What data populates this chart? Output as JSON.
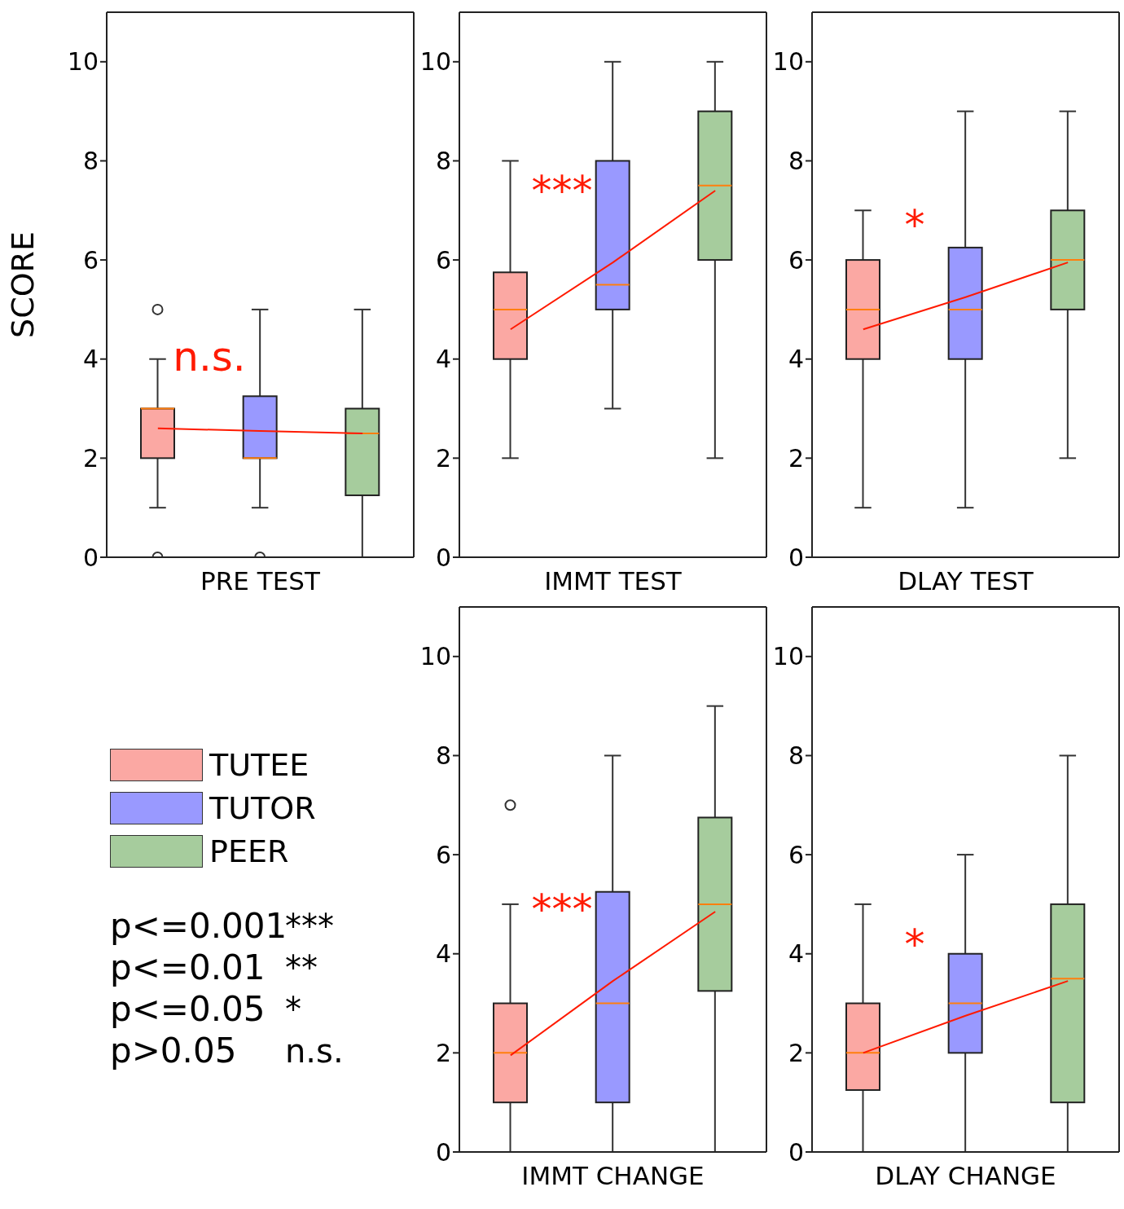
{
  "chart_data": [
    {
      "type": "box",
      "xlabel": "PRE TEST",
      "ylabel": "SCORE",
      "categories": [
        null,
        null,
        null
      ],
      "ylim": [
        0,
        11
      ],
      "yticks": [
        0,
        2,
        4,
        6,
        8,
        10
      ],
      "tick_labels": "y",
      "annotations": [
        "n.s."
      ],
      "series": [
        {
          "type": "box",
          "colors": [
            "#fba8a3",
            "#9999ff",
            "#a6cc9d"
          ],
          "boxes": [
            {
              "low": 1,
              "q1": 2,
              "median": 3,
              "q3": 3,
              "high": 4,
              "outliers": [
                5,
                0
              ]
            },
            {
              "low": 1,
              "q1": 2,
              "median": 2,
              "q3": 3.25,
              "high": 5,
              "outliers": [
                0
              ]
            },
            {
              "low": 0,
              "q1": 1.25,
              "median": 2.5,
              "q3": 3,
              "high": 5
            }
          ]
        },
        {
          "type": "line",
          "color": "#ff1a00",
          "values": [
            2.6,
            2.55,
            2.5
          ]
        }
      ]
    },
    {
      "type": "box",
      "xlabel": "IMMT TEST",
      "categories": [
        null,
        null,
        null
      ],
      "ylim": [
        0,
        11
      ],
      "yticks": [
        0,
        2,
        4,
        6,
        8,
        10
      ],
      "tick_labels": "y",
      "annotations": [
        "***"
      ],
      "series": [
        {
          "type": "box",
          "colors": [
            "#fba8a3",
            "#9999ff",
            "#a6cc9d"
          ],
          "boxes": [
            {
              "low": 2,
              "q1": 4,
              "median": 5,
              "q3": 5.75,
              "high": 8
            },
            {
              "low": 3,
              "q1": 5,
              "median": 5.5,
              "q3": 8,
              "high": 10
            },
            {
              "low": 2,
              "q1": 6,
              "median": 7.5,
              "q3": 9,
              "high": 10
            }
          ]
        },
        {
          "type": "line",
          "color": "#ff1a00",
          "values": [
            4.6,
            5.95,
            7.4
          ]
        }
      ]
    },
    {
      "type": "box",
      "xlabel": "DLAY TEST",
      "categories": [
        null,
        null,
        null
      ],
      "ylim": [
        0,
        11
      ],
      "yticks": [
        0,
        2,
        4,
        6,
        8,
        10
      ],
      "tick_labels": "y",
      "annotations": [
        "*"
      ],
      "series": [
        {
          "type": "box",
          "colors": [
            "#fba8a3",
            "#9999ff",
            "#a6cc9d"
          ],
          "boxes": [
            {
              "low": 1,
              "q1": 4,
              "median": 5,
              "q3": 6,
              "high": 7
            },
            {
              "low": 1,
              "q1": 4,
              "median": 5,
              "q3": 6.25,
              "high": 9
            },
            {
              "low": 2,
              "q1": 5,
              "median": 6,
              "q3": 7,
              "high": 9
            }
          ]
        },
        {
          "type": "line",
          "color": "#ff1a00",
          "values": [
            4.6,
            5.25,
            5.95
          ]
        }
      ]
    },
    {
      "type": "other",
      "categories": [
        "TUTEE",
        "TUTOR",
        "PEER"
      ],
      "colors": [
        "#fba8a3",
        "#9999ff",
        "#a6cc9d"
      ],
      "annotations": [
        "p<=0.001",
        "***",
        "p<=0.01",
        "**",
        "p<=0.05",
        "*",
        "p>0.05",
        "n.s."
      ]
    },
    {
      "type": "box",
      "xlabel": "IMMT CHANGE",
      "categories": [
        null,
        null,
        null
      ],
      "ylim": [
        0,
        11
      ],
      "yticks": [
        0,
        2,
        4,
        6,
        8,
        10
      ],
      "tick_labels": "y",
      "annotations": [
        "***"
      ],
      "series": [
        {
          "type": "box",
          "colors": [
            "#fba8a3",
            "#9999ff",
            "#a6cc9d"
          ],
          "boxes": [
            {
              "low": 0,
              "q1": 1,
              "median": 2,
              "q3": 3,
              "high": 5,
              "outliers": [
                7
              ]
            },
            {
              "low": 0,
              "q1": 1,
              "median": 3,
              "q3": 5.25,
              "high": 8
            },
            {
              "low": 0,
              "q1": 3.25,
              "median": 5,
              "q3": 6.75,
              "high": 9
            }
          ]
        },
        {
          "type": "line",
          "color": "#ff1a00",
          "values": [
            1.95,
            3.45,
            4.85
          ]
        }
      ]
    },
    {
      "type": "box",
      "xlabel": "DLAY CHANGE",
      "categories": [
        null,
        null,
        null
      ],
      "ylim": [
        0,
        11
      ],
      "yticks": [
        0,
        2,
        4,
        6,
        8,
        10
      ],
      "tick_labels": "y",
      "annotations": [
        "*"
      ],
      "series": [
        {
          "type": "box",
          "colors": [
            "#fba8a3",
            "#9999ff",
            "#a6cc9d"
          ],
          "boxes": [
            {
              "low": 0,
              "q1": 1.25,
              "median": 2,
              "q3": 3,
              "high": 5
            },
            {
              "low": 0,
              "q1": 2,
              "median": 3,
              "q3": 4,
              "high": 6
            },
            {
              "low": 0,
              "q1": 1,
              "median": 3.5,
              "q3": 5,
              "high": 8
            }
          ]
        },
        {
          "type": "line",
          "color": "#ff1a00",
          "values": [
            2.0,
            2.75,
            3.45
          ]
        }
      ]
    }
  ]
}
